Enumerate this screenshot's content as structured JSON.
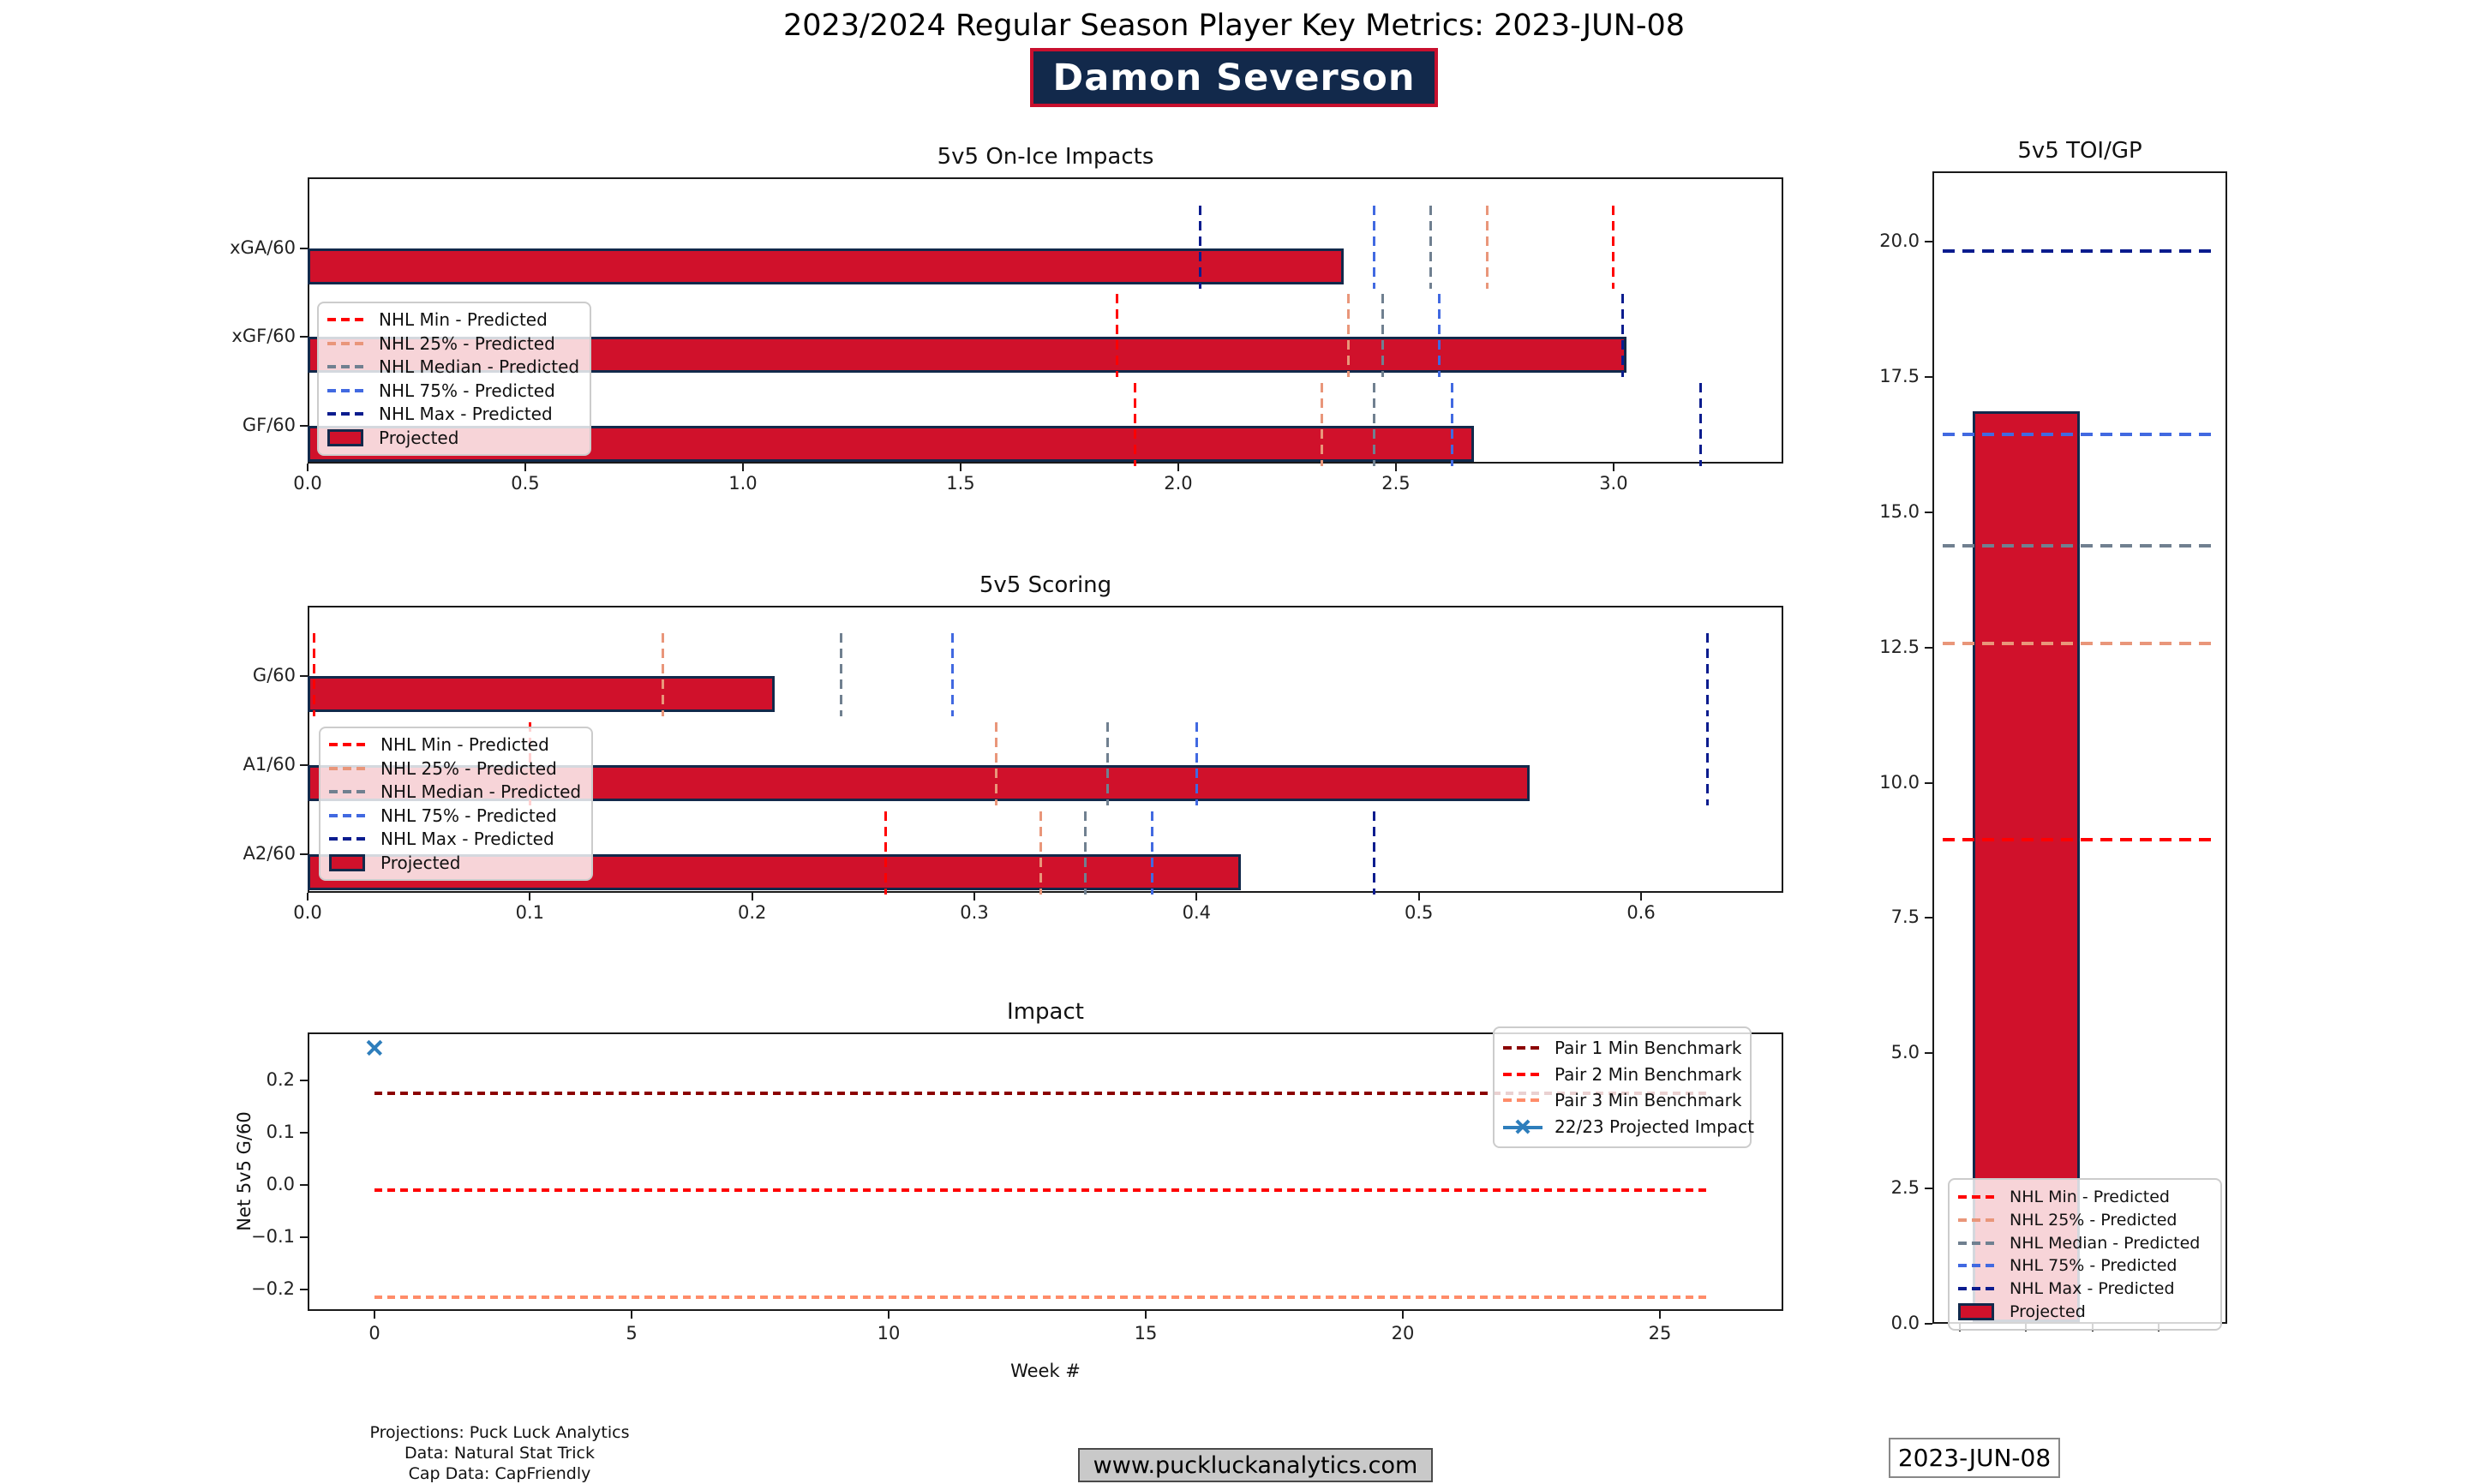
{
  "header": {
    "title": "2023/2024 Regular Season Player Key Metrics: 2023-JUN-08",
    "player_name": "Damon Severson"
  },
  "footer": {
    "credits": [
      "Projections: Puck Luck Analytics",
      "Data: Natural Stat Trick",
      "Cap Data: CapFriendly"
    ],
    "website": "www.puckluckanalytics.com",
    "date": "2023-JUN-08"
  },
  "colors": {
    "bar": "#d0112b",
    "bar_edge": "#12294b",
    "min": "#ff0000",
    "p25": "#e9967a",
    "median": "#708090",
    "p75": "#4169e1",
    "max": "#0a1c8e",
    "pair1": "#8b0000",
    "pair2": "#ff0000",
    "pair3": "#ff8c69",
    "impact_marker": "#2e7ebc",
    "badge_bg": "#12294b",
    "badge_border": "#c8102e"
  },
  "legend_labels": {
    "nhl": [
      "NHL Min - Predicted",
      "NHL 25% - Predicted",
      "NHL Median - Predicted",
      "NHL 75% - Predicted",
      "NHL Max - Predicted",
      "Projected"
    ],
    "impact": [
      "Pair 1 Min Benchmark",
      "Pair 2 Min Benchmark",
      "Pair 3 Min Benchmark",
      "22/23 Projected Impact"
    ]
  },
  "chart_data": [
    {
      "id": "on-ice-impacts",
      "type": "barh",
      "title": "5v5 On-Ice Impacts",
      "categories": [
        "xGA/60",
        "xGF/60",
        "GF/60"
      ],
      "values": [
        2.38,
        3.03,
        2.68
      ],
      "xlim": [
        0,
        3.39
      ],
      "xticks": {
        "labels": [
          "0.0",
          "0.5",
          "1.0",
          "1.5",
          "2.0",
          "2.5",
          "3.0"
        ],
        "values": [
          0,
          0.5,
          1.0,
          1.5,
          2.0,
          2.5,
          3.0
        ]
      },
      "benchmarks": [
        {
          "category": "xGA/60",
          "min": 3.0,
          "p25": 2.71,
          "median": 2.58,
          "p75": 2.45,
          "max": 2.05
        },
        {
          "category": "xGF/60",
          "min": 1.86,
          "p25": 2.39,
          "median": 2.47,
          "p75": 2.6,
          "max": 3.02
        },
        {
          "category": "GF/60",
          "min": 1.9,
          "p25": 2.33,
          "median": 2.45,
          "p75": 2.63,
          "max": 3.2
        }
      ],
      "legend_position": "left"
    },
    {
      "id": "scoring",
      "type": "barh",
      "title": "5v5 Scoring",
      "categories": [
        "G/60",
        "A1/60",
        "A2/60"
      ],
      "values": [
        0.21,
        0.55,
        0.42
      ],
      "xlim": [
        0,
        0.664
      ],
      "xticks": {
        "labels": [
          "0.0",
          "0.1",
          "0.2",
          "0.3",
          "0.4",
          "0.5",
          "0.6"
        ],
        "values": [
          0,
          0.1,
          0.2,
          0.3,
          0.4,
          0.5,
          0.6
        ]
      },
      "benchmarks": [
        {
          "category": "G/60",
          "min": 0.003,
          "p25": 0.16,
          "median": 0.24,
          "p75": 0.29,
          "max": 0.63
        },
        {
          "category": "A1/60",
          "min": 0.1,
          "p25": 0.31,
          "median": 0.36,
          "p75": 0.4,
          "max": 0.63
        },
        {
          "category": "A2/60",
          "min": 0.26,
          "p25": 0.33,
          "median": 0.35,
          "p75": 0.38,
          "max": 0.48
        }
      ],
      "legend_position": "left"
    },
    {
      "id": "impact",
      "type": "line",
      "title": "Impact",
      "xlabel": "Week #",
      "ylabel": "Net 5v5 G/60",
      "xlim": [
        -1.3,
        27.4
      ],
      "ylim": [
        -0.241,
        0.292
      ],
      "xticks": {
        "labels": [
          "0",
          "5",
          "10",
          "15",
          "20",
          "25"
        ],
        "values": [
          0,
          5,
          10,
          15,
          20,
          25
        ]
      },
      "yticks": {
        "labels": [
          "0.2",
          "0.1",
          "0.0",
          "−0.1",
          "−0.2"
        ],
        "values": [
          0.2,
          0.1,
          0.0,
          -0.1,
          -0.2
        ]
      },
      "benchmarks": [
        {
          "name": "Pair 1 Min Benchmark",
          "value": 0.175
        },
        {
          "name": "Pair 2 Min Benchmark",
          "value": -0.01
        },
        {
          "name": "Pair 3 Min Benchmark",
          "value": -0.215
        }
      ],
      "benchmark_week_span": [
        0,
        26
      ],
      "series": [
        {
          "name": "22/23 Projected Impact",
          "x": [
            0
          ],
          "y": [
            0.262
          ]
        }
      ]
    },
    {
      "id": "toi",
      "type": "bar",
      "title": "5v5 TOI/GP",
      "value": 16.86,
      "ylim": [
        0,
        21.3
      ],
      "yticks": {
        "labels": [
          "0.0",
          "2.5",
          "5.0",
          "7.5",
          "10.0",
          "12.5",
          "15.0",
          "17.5",
          "20.0"
        ],
        "values": [
          0,
          2.5,
          5,
          7.5,
          10,
          12.5,
          15,
          17.5,
          20
        ]
      },
      "benchmarks": {
        "min": 8.95,
        "p25": 12.58,
        "median": 14.38,
        "p75": 16.44,
        "max": 19.82
      }
    }
  ]
}
